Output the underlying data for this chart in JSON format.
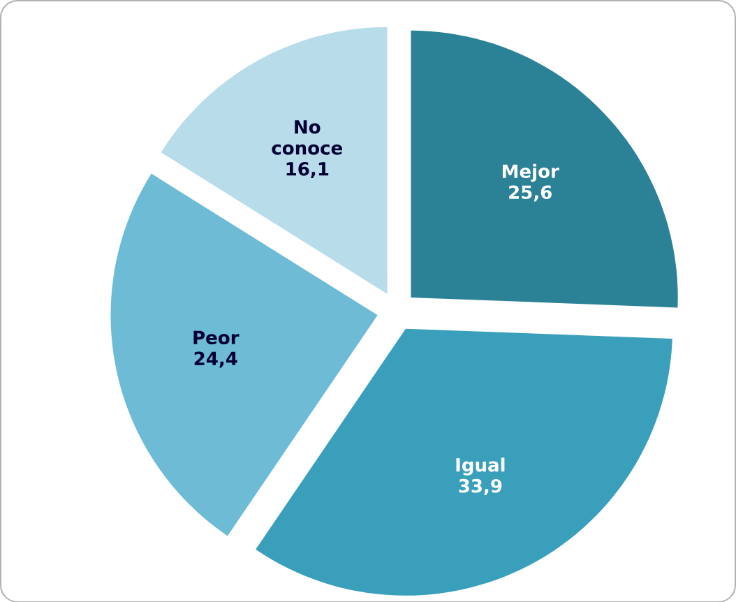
{
  "chart_data": {
    "type": "pie",
    "categories": [
      "Mejor",
      "Igual",
      "Peor",
      "No conoce"
    ],
    "values": [
      25.6,
      33.9,
      24.4,
      16.1
    ],
    "value_labels": [
      "25,6",
      "33,9",
      "24,4",
      "16,1"
    ],
    "colors": [
      "#2b8196",
      "#3a9fbb",
      "#6dbbd5",
      "#b9dcea"
    ]
  }
}
